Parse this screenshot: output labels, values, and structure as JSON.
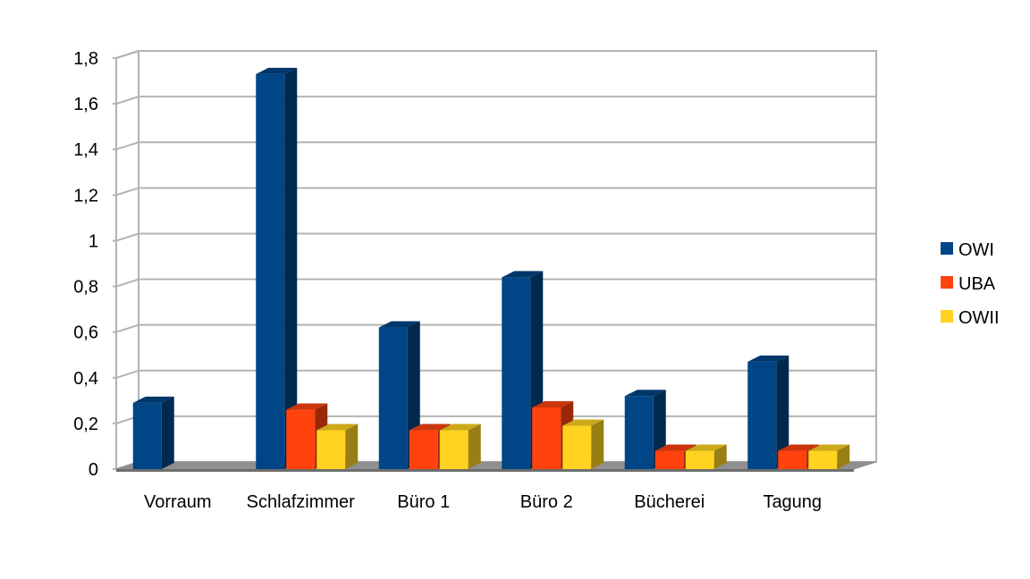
{
  "chart_data": {
    "type": "bar",
    "title": "",
    "xlabel": "",
    "ylabel": "",
    "ylim": [
      0,
      1.8
    ],
    "yticks": [
      "0",
      "0,2",
      "0,4",
      "0,6",
      "0,8",
      "1",
      "1,2",
      "1,4",
      "1,6",
      "1,8"
    ],
    "grid": true,
    "legend_position": "right",
    "style": "3d-columns",
    "categories": [
      "Vorraum",
      "Schlafzimmer",
      "Büro 1",
      "Büro 2",
      "Bücherei",
      "Tagung"
    ],
    "series": [
      {
        "name": "OWI",
        "color": "#004586",
        "values": [
          0.29,
          1.73,
          0.62,
          0.84,
          0.32,
          0.47
        ]
      },
      {
        "name": "UBA",
        "color": "#ff420e",
        "values": [
          null,
          0.26,
          0.17,
          0.27,
          0.08,
          0.08
        ]
      },
      {
        "name": "OWII",
        "color": "#ffd320",
        "values": [
          null,
          0.17,
          0.17,
          0.19,
          0.08,
          0.08
        ]
      }
    ]
  }
}
